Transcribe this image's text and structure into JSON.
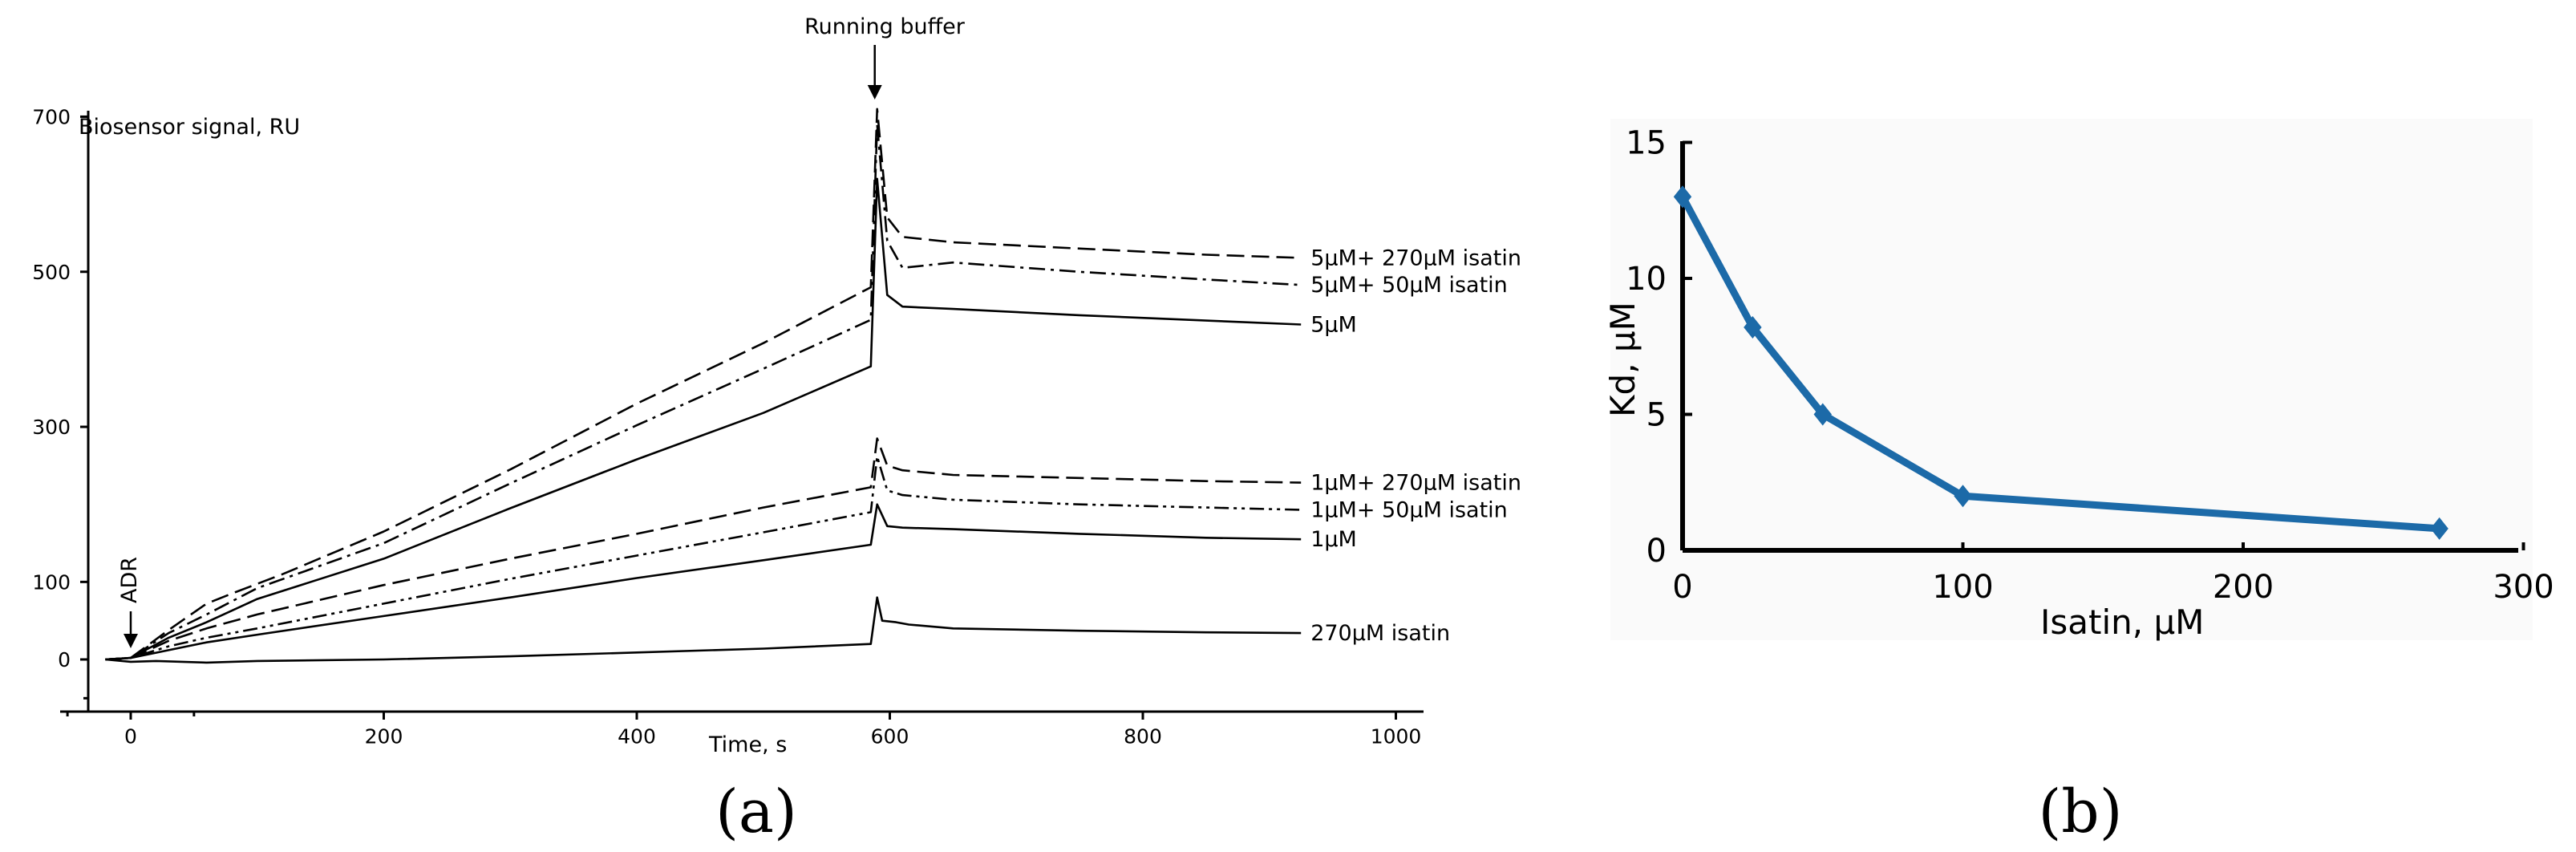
{
  "panels": {
    "a": "(a)",
    "b": "(b)"
  },
  "chart_data": [
    {
      "type": "line",
      "ylabel": "Biosensor signal, RU",
      "xlabel": "Time, s",
      "xlim": [
        -50,
        1000
      ],
      "ylim": [
        -50,
        700
      ],
      "x_ticks": [
        0,
        200,
        400,
        600,
        800,
        1000
      ],
      "x_tick_labels": [
        "0",
        "200",
        "400",
        "600",
        "800",
        "1000"
      ],
      "y_ticks": [
        0,
        100,
        300,
        500,
        700
      ],
      "y_tick_labels": [
        "0",
        "100",
        "300",
        "500",
        "700"
      ],
      "annotations": {
        "start": "ADR",
        "switch": "Running buffer"
      },
      "annotation_x": {
        "start": 0,
        "switch": 590
      },
      "grid": false,
      "series": [
        {
          "name": "5μM+ 270μM isatin",
          "dash": "long",
          "points": [
            [
              -20,
              0
            ],
            [
              0,
              2
            ],
            [
              30,
              38
            ],
            [
              60,
              72
            ],
            [
              80,
              85
            ],
            [
              120,
              110
            ],
            [
              200,
              165
            ],
            [
              300,
              245
            ],
            [
              400,
              330
            ],
            [
              500,
              408
            ],
            [
              585,
              480
            ],
            [
              590,
              710
            ],
            [
              598,
              570
            ],
            [
              610,
              545
            ],
            [
              650,
              538
            ],
            [
              750,
              530
            ],
            [
              850,
              522
            ],
            [
              925,
              518
            ]
          ]
        },
        {
          "name": "5μM+ 50μM isatin",
          "dash": "dashdot",
          "points": [
            [
              -20,
              0
            ],
            [
              0,
              2
            ],
            [
              30,
              34
            ],
            [
              60,
              58
            ],
            [
              100,
              92
            ],
            [
              200,
              150
            ],
            [
              300,
              227
            ],
            [
              400,
              302
            ],
            [
              500,
              375
            ],
            [
              585,
              438
            ],
            [
              590,
              690
            ],
            [
              598,
              540
            ],
            [
              610,
              505
            ],
            [
              650,
              512
            ],
            [
              750,
              500
            ],
            [
              850,
              490
            ],
            [
              925,
              483
            ]
          ]
        },
        {
          "name": "5μM",
          "dash": "solid",
          "points": [
            [
              -20,
              0
            ],
            [
              0,
              2
            ],
            [
              30,
              28
            ],
            [
              60,
              48
            ],
            [
              100,
              78
            ],
            [
              200,
              130
            ],
            [
              300,
              195
            ],
            [
              400,
              258
            ],
            [
              500,
              318
            ],
            [
              585,
              378
            ],
            [
              590,
              620
            ],
            [
              598,
              470
            ],
            [
              610,
              455
            ],
            [
              650,
              452
            ],
            [
              750,
              444
            ],
            [
              850,
              437
            ],
            [
              925,
              432
            ]
          ]
        },
        {
          "name": "1μM+ 270μM isatin",
          "dash": "long",
          "points": [
            [
              -20,
              0
            ],
            [
              0,
              2
            ],
            [
              30,
              24
            ],
            [
              60,
              40
            ],
            [
              100,
              58
            ],
            [
              200,
              96
            ],
            [
              300,
              130
            ],
            [
              400,
              162
            ],
            [
              500,
              196
            ],
            [
              585,
              222
            ],
            [
              590,
              285
            ],
            [
              598,
              250
            ],
            [
              610,
              244
            ],
            [
              650,
              238
            ],
            [
              750,
              234
            ],
            [
              850,
              230
            ],
            [
              925,
              228
            ]
          ]
        },
        {
          "name": "1μM+ 50μM isatin",
          "dash": "dashdotdot",
          "points": [
            [
              -20,
              0
            ],
            [
              0,
              2
            ],
            [
              30,
              17
            ],
            [
              60,
              28
            ],
            [
              100,
              40
            ],
            [
              200,
              72
            ],
            [
              300,
              104
            ],
            [
              400,
              134
            ],
            [
              500,
              164
            ],
            [
              585,
              190
            ],
            [
              590,
              262
            ],
            [
              598,
              218
            ],
            [
              610,
              212
            ],
            [
              650,
              206
            ],
            [
              750,
              200
            ],
            [
              850,
              196
            ],
            [
              925,
              193
            ]
          ]
        },
        {
          "name": "1μM",
          "dash": "solid",
          "points": [
            [
              -20,
              0
            ],
            [
              0,
              2
            ],
            [
              30,
              12
            ],
            [
              60,
              22
            ],
            [
              100,
              32
            ],
            [
              200,
              56
            ],
            [
              300,
              80
            ],
            [
              400,
              105
            ],
            [
              500,
              128
            ],
            [
              585,
              148
            ],
            [
              590,
              200
            ],
            [
              598,
              172
            ],
            [
              610,
              170
            ],
            [
              650,
              168
            ],
            [
              750,
              162
            ],
            [
              850,
              157
            ],
            [
              925,
              155
            ]
          ]
        },
        {
          "name": "270μM isatin",
          "dash": "solid",
          "points": [
            [
              -20,
              0
            ],
            [
              0,
              -3
            ],
            [
              20,
              -2
            ],
            [
              60,
              -4
            ],
            [
              100,
              -2
            ],
            [
              200,
              0
            ],
            [
              300,
              4
            ],
            [
              400,
              9
            ],
            [
              500,
              14
            ],
            [
              585,
              20
            ],
            [
              590,
              80
            ],
            [
              594,
              50
            ],
            [
              605,
              48
            ],
            [
              615,
              45
            ],
            [
              650,
              40
            ],
            [
              750,
              37
            ],
            [
              850,
              35
            ],
            [
              925,
              34
            ]
          ]
        }
      ]
    },
    {
      "type": "line",
      "xlabel": "Isatin, μM",
      "ylabel": "Kd, μM",
      "xlim": [
        0,
        300
      ],
      "ylim": [
        0,
        15
      ],
      "x_ticks": [
        0,
        100,
        200,
        300
      ],
      "x_tick_labels": [
        "0",
        "100",
        "200",
        "300"
      ],
      "y_ticks": [
        0,
        5,
        10,
        15
      ],
      "y_tick_labels": [
        "0",
        "5",
        "10",
        "15"
      ],
      "grid": false,
      "color": "#1c6aa8",
      "marker": "diamond",
      "x": [
        0,
        25,
        50,
        100,
        270
      ],
      "y": [
        13,
        8.2,
        5,
        2,
        0.8
      ]
    }
  ]
}
